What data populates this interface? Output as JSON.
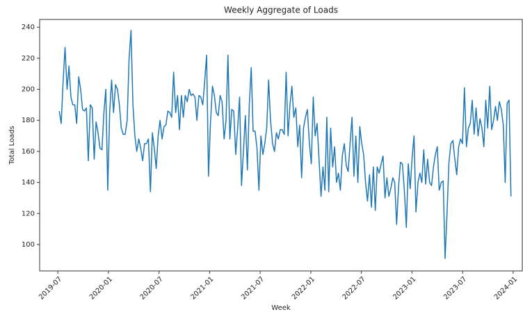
{
  "chart_data": {
    "type": "line",
    "title": "Weekly Aggregate of Loads",
    "x_label": "Week",
    "y_label": "Total Loads",
    "color": "#1f77b4",
    "xlim": [
      2019.32,
      2024.09
    ],
    "ylim": [
      83,
      245
    ],
    "xticks": [
      {
        "value": 2019.5,
        "label": "2019-07"
      },
      {
        "value": 2020.0,
        "label": "2020-01"
      },
      {
        "value": 2020.5,
        "label": "2020-07"
      },
      {
        "value": 2021.0,
        "label": "2021-01"
      },
      {
        "value": 2021.5,
        "label": "2021-07"
      },
      {
        "value": 2022.0,
        "label": "2022-01"
      },
      {
        "value": 2022.5,
        "label": "2022-07"
      },
      {
        "value": 2023.0,
        "label": "2023-01"
      },
      {
        "value": 2023.5,
        "label": "2023-07"
      },
      {
        "value": 2024.0,
        "label": "2024-01"
      }
    ],
    "yticks": [
      100,
      120,
      140,
      160,
      180,
      200,
      220,
      240
    ],
    "x": [
      2019.514,
      2019.533,
      2019.552,
      2019.571,
      2019.591,
      2019.61,
      2019.629,
      2019.648,
      2019.667,
      2019.686,
      2019.706,
      2019.725,
      2019.744,
      2019.763,
      2019.782,
      2019.801,
      2019.821,
      2019.84,
      2019.859,
      2019.878,
      2019.897,
      2019.916,
      2019.936,
      2019.955,
      2019.974,
      2019.993,
      2020.012,
      2020.031,
      2020.05,
      2020.07,
      2020.089,
      2020.108,
      2020.127,
      2020.146,
      2020.165,
      2020.185,
      2020.204,
      2020.223,
      2020.242,
      2020.261,
      2020.28,
      2020.3,
      2020.319,
      2020.338,
      2020.357,
      2020.376,
      2020.395,
      2020.415,
      2020.434,
      2020.453,
      2020.472,
      2020.491,
      2020.51,
      2020.53,
      2020.549,
      2020.568,
      2020.587,
      2020.606,
      2020.625,
      2020.644,
      2020.664,
      2020.683,
      2020.702,
      2020.721,
      2020.74,
      2020.759,
      2020.779,
      2020.798,
      2020.817,
      2020.836,
      2020.855,
      2020.874,
      2020.894,
      2020.913,
      2020.932,
      2020.951,
      2020.97,
      2020.989,
      2021.008,
      2021.028,
      2021.047,
      2021.066,
      2021.085,
      2021.104,
      2021.123,
      2021.143,
      2021.162,
      2021.181,
      2021.2,
      2021.219,
      2021.238,
      2021.258,
      2021.277,
      2021.296,
      2021.315,
      2021.334,
      2021.353,
      2021.373,
      2021.392,
      2021.411,
      2021.43,
      2021.449,
      2021.468,
      2021.487,
      2021.507,
      2021.526,
      2021.545,
      2021.564,
      2021.583,
      2021.602,
      2021.622,
      2021.641,
      2021.66,
      2021.679,
      2021.698,
      2021.717,
      2021.737,
      2021.756,
      2021.775,
      2021.794,
      2021.813,
      2021.832,
      2021.852,
      2021.871,
      2021.89,
      2021.909,
      2021.928,
      2021.947,
      2021.966,
      2021.986,
      2022.005,
      2022.024,
      2022.043,
      2022.062,
      2022.081,
      2022.101,
      2022.12,
      2022.139,
      2022.158,
      2022.177,
      2022.196,
      2022.216,
      2022.235,
      2022.254,
      2022.273,
      2022.292,
      2022.311,
      2022.331,
      2022.35,
      2022.369,
      2022.388,
      2022.407,
      2022.426,
      2022.445,
      2022.465,
      2022.484,
      2022.503,
      2022.522,
      2022.541,
      2022.56,
      2022.58,
      2022.599,
      2022.618,
      2022.637,
      2022.656,
      2022.675,
      2022.695,
      2022.714,
      2022.733,
      2022.752,
      2022.771,
      2022.79,
      2022.81,
      2022.829,
      2022.848,
      2022.867,
      2022.886,
      2022.905,
      2022.924,
      2022.944,
      2022.963,
      2022.982,
      2023.001,
      2023.02,
      2023.039,
      2023.059,
      2023.078,
      2023.097,
      2023.116,
      2023.135,
      2023.154,
      2023.174,
      2023.193,
      2023.212,
      2023.231,
      2023.25,
      2023.269,
      2023.289,
      2023.308,
      2023.327,
      2023.346,
      2023.365,
      2023.384,
      2023.404,
      2023.423,
      2023.442,
      2023.461,
      2023.48,
      2023.499,
      2023.518,
      2023.538,
      2023.557,
      2023.576,
      2023.595,
      2023.614,
      2023.633,
      2023.653,
      2023.672,
      2023.691,
      2023.71,
      2023.729,
      2023.748,
      2023.768,
      2023.787,
      2023.806,
      2023.825,
      2023.844,
      2023.863,
      2023.883,
      2023.902,
      2023.921,
      2023.94,
      2023.959,
      2023.978
    ],
    "values": [
      186,
      178,
      205,
      227,
      200,
      215,
      195,
      190,
      190,
      178,
      208,
      200,
      187,
      186,
      188,
      154,
      190,
      188,
      155,
      179,
      172,
      162,
      161,
      185,
      200,
      135,
      185,
      206,
      185,
      203,
      200,
      190,
      175,
      171,
      171,
      180,
      220,
      238,
      190,
      170,
      160,
      168,
      162,
      154,
      165,
      165,
      168,
      134,
      172,
      162,
      149,
      170,
      180,
      168,
      176,
      177,
      186,
      185,
      182,
      211,
      185,
      196,
      174,
      196,
      182,
      196,
      192,
      200,
      196,
      197,
      195,
      180,
      196,
      195,
      190,
      205,
      222,
      144,
      178,
      202,
      196,
      185,
      183,
      196,
      192,
      168,
      180,
      222,
      168,
      187,
      186,
      158,
      175,
      195,
      138,
      160,
      183,
      148,
      190,
      214,
      173,
      173,
      162,
      135,
      170,
      158,
      165,
      175,
      206,
      180,
      165,
      160,
      172,
      168,
      174,
      174,
      171,
      211,
      170,
      190,
      202,
      182,
      188,
      163,
      177,
      143,
      175,
      182,
      187,
      165,
      152,
      195,
      170,
      178,
      155,
      131,
      150,
      135,
      182,
      134,
      175,
      150,
      163,
      140,
      146,
      135,
      157,
      165,
      151,
      147,
      165,
      182,
      144,
      170,
      140,
      176,
      165,
      158,
      140,
      128,
      145,
      124,
      150,
      122,
      150,
      146,
      152,
      157,
      130,
      143,
      131,
      136,
      143,
      140,
      113,
      137,
      153,
      152,
      135,
      111,
      152,
      136,
      156,
      170,
      121,
      140,
      146,
      140,
      161,
      139,
      155,
      140,
      138,
      150,
      158,
      163,
      135,
      140,
      141,
      91,
      120,
      153,
      165,
      167,
      155,
      145,
      163,
      168,
      165,
      201,
      163,
      175,
      178,
      193,
      171,
      188,
      170,
      181,
      175,
      163,
      193,
      175,
      202,
      174,
      180,
      189,
      180,
      192,
      187,
      177,
      140,
      191,
      193,
      131
    ]
  }
}
